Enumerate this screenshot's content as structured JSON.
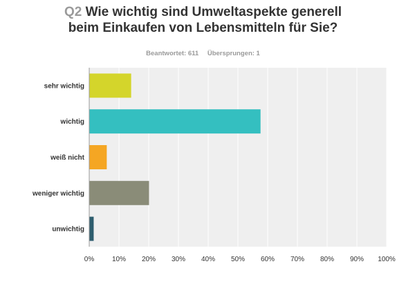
{
  "question": {
    "number": "Q2",
    "line1": "Wie wichtig sind Umweltaspekte generell",
    "line2": "beim Einkaufen von Lebensmitteln für Sie?"
  },
  "stats": {
    "answered": "Beantwortet: 611",
    "skipped": "Übersprungen: 1"
  },
  "chart_data": {
    "type": "bar",
    "orientation": "horizontal",
    "categories": [
      "sehr wichtig",
      "wichtig",
      "weiß nicht",
      "weniger wichtig",
      "unwichtig"
    ],
    "values": [
      14.1,
      57.6,
      5.9,
      20.1,
      1.5
    ],
    "colors": [
      "#d4d52b",
      "#34bfc0",
      "#f5a623",
      "#8a8c78",
      "#2e5d6e"
    ],
    "xlim": [
      0,
      100
    ],
    "xticks": [
      "0%",
      "10%",
      "20%",
      "30%",
      "40%",
      "50%",
      "60%",
      "70%",
      "80%",
      "90%",
      "100%"
    ],
    "grid": true,
    "background": "#efefef"
  }
}
